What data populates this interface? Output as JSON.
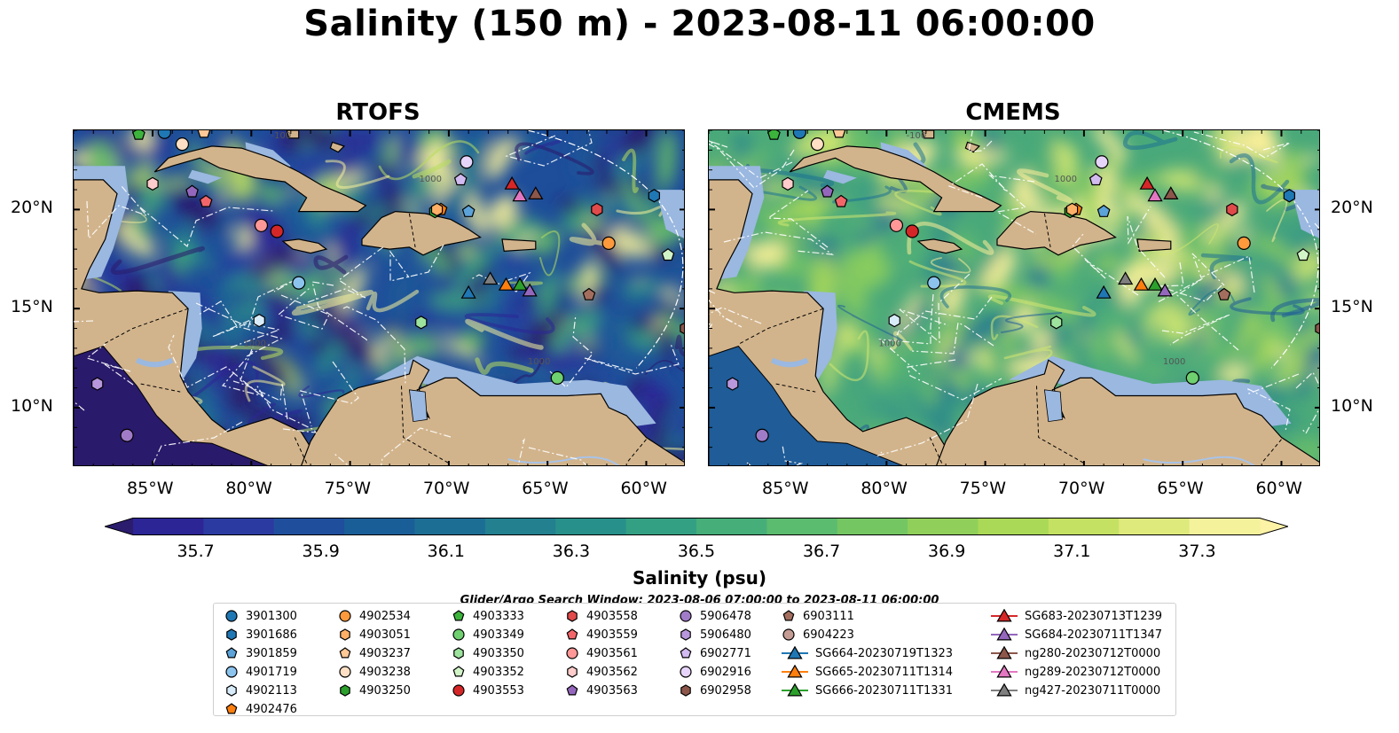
{
  "title": "Salinity (150 m) - 2023-08-11 06:00:00",
  "panels": [
    {
      "title": "RTOFS",
      "palette": "rtofs"
    },
    {
      "title": "CMEMS",
      "palette": "cmems"
    }
  ],
  "map": {
    "lon_range": [
      -89,
      -58
    ],
    "lat_range": [
      7,
      24
    ],
    "lon_ticks": [
      -85,
      -80,
      -75,
      -70,
      -65,
      -60
    ],
    "lon_tick_labels": [
      "85°W",
      "80°W",
      "75°W",
      "70°W",
      "65°W",
      "60°W"
    ],
    "lat_ticks": [
      10,
      15,
      20
    ],
    "lat_tick_labels": [
      "10°N",
      "15°N",
      "20°N"
    ],
    "contour_labels": [
      "-100",
      "1000",
      "1000",
      "1000"
    ],
    "colors": {
      "land": "#d2b48c",
      "shelf": "#9ab8e0",
      "low_salinity": "#2a1a6b",
      "high_salinity": "#fbf09a"
    }
  },
  "colorbar": {
    "label": "Salinity (psu)",
    "ticks": [
      "35.7",
      "35.9",
      "36.1",
      "36.3",
      "36.5",
      "36.7",
      "36.9",
      "37.1",
      "37.3"
    ],
    "tick_values": [
      35.7,
      35.9,
      36.1,
      36.3,
      36.5,
      36.7,
      36.9,
      37.1,
      37.3
    ],
    "min": 35.6,
    "max": 37.4,
    "colors": [
      "#2b1c6e",
      "#2c2596",
      "#2b3aa0",
      "#1f4e9c",
      "#1a5e98",
      "#1d6e94",
      "#22808f",
      "#28908a",
      "#34a083",
      "#46ae79",
      "#5bbb6e",
      "#74c663",
      "#90cf5a",
      "#aad957",
      "#c4e163",
      "#deea7c",
      "#f5f29c",
      "#fdf3a6"
    ]
  },
  "search_window": "Glider/Argo Search Window: 2023-08-06 07:00:00 to 2023-08-11 06:00:00",
  "legend": {
    "columns": [
      [
        {
          "label": "3901300",
          "marker": "circle",
          "color": "#1f77b4"
        },
        {
          "label": "3901686",
          "marker": "hexagon",
          "color": "#1f77b4"
        },
        {
          "label": "3901859",
          "marker": "pentagon",
          "color": "#5ba3d9"
        },
        {
          "label": "4901719",
          "marker": "circle",
          "color": "#8cc4ee"
        },
        {
          "label": "4902113",
          "marker": "hexagon",
          "color": "#d8ecfa"
        },
        {
          "label": "4902476",
          "marker": "pentagon",
          "color": "#ff7f0e"
        }
      ],
      [
        {
          "label": "4902534",
          "marker": "circle",
          "color": "#ff9a3c"
        },
        {
          "label": "4903051",
          "marker": "hexagon",
          "color": "#ffb066"
        },
        {
          "label": "4903237",
          "marker": "pentagon",
          "color": "#ffc896"
        },
        {
          "label": "4903238",
          "marker": "circle",
          "color": "#ffe0c4"
        },
        {
          "label": "4903250",
          "marker": "hexagon",
          "color": "#2ca02c"
        }
      ],
      [
        {
          "label": "4903333",
          "marker": "pentagon",
          "color": "#3cb43c"
        },
        {
          "label": "4903349",
          "marker": "circle",
          "color": "#6fd06f"
        },
        {
          "label": "4903350",
          "marker": "hexagon",
          "color": "#9de39d"
        },
        {
          "label": "4903352",
          "marker": "pentagon",
          "color": "#d2f5c8"
        },
        {
          "label": "4903553",
          "marker": "circle",
          "color": "#d62728"
        }
      ],
      [
        {
          "label": "4903558",
          "marker": "hexagon",
          "color": "#e04a4a"
        },
        {
          "label": "4903559",
          "marker": "pentagon",
          "color": "#f2666a"
        },
        {
          "label": "4903561",
          "marker": "circle",
          "color": "#ff9896"
        },
        {
          "label": "4903562",
          "marker": "hexagon",
          "color": "#ffcccc"
        },
        {
          "label": "4903563",
          "marker": "pentagon",
          "color": "#9467bd"
        }
      ],
      [
        {
          "label": "5906478",
          "marker": "circle",
          "color": "#a07cc8"
        },
        {
          "label": "5906480",
          "marker": "hexagon",
          "color": "#b897dc"
        },
        {
          "label": "6902771",
          "marker": "pentagon",
          "color": "#d2bbf0"
        },
        {
          "label": "6902916",
          "marker": "circle",
          "color": "#e6d4fa"
        },
        {
          "label": "6902958",
          "marker": "hexagon",
          "color": "#8c564b"
        }
      ],
      [
        {
          "label": "6903111",
          "marker": "pentagon",
          "color": "#a46e5f"
        },
        {
          "label": "6904223",
          "marker": "circle",
          "color": "#c49c94"
        },
        {
          "label": "SG664-20230719T1323",
          "marker": "triangle-line",
          "color": "#1f77b4"
        },
        {
          "label": "SG665-20230711T1314",
          "marker": "triangle-line",
          "color": "#ff7f0e"
        },
        {
          "label": "SG666-20230711T1331",
          "marker": "triangle-line",
          "color": "#2ca02c"
        }
      ],
      [
        {
          "label": "SG683-20230713T1239",
          "marker": "triangle-line",
          "color": "#d62728"
        },
        {
          "label": "SG684-20230711T1347",
          "marker": "triangle-line",
          "color": "#9467bd"
        },
        {
          "label": "ng280-20230712T0000",
          "marker": "triangle-line",
          "color": "#8c564b"
        },
        {
          "label": "ng289-20230712T0000",
          "marker": "triangle-line",
          "color": "#e377c2"
        },
        {
          "label": "ng427-20230711T0000",
          "marker": "triangle-line",
          "color": "#7f7f7f"
        }
      ]
    ]
  },
  "stations": [
    {
      "id": "3901300",
      "marker": "circle",
      "color": "#1f77b4",
      "lon": -84.4,
      "lat": 23.9
    },
    {
      "id": "3901686",
      "marker": "hexagon",
      "color": "#1f77b4",
      "lon": -59.6,
      "lat": 20.7
    },
    {
      "id": "4901719",
      "marker": "circle",
      "color": "#8cc4ee",
      "lon": -77.6,
      "lat": 16.3
    },
    {
      "id": "4902113",
      "marker": "hexagon",
      "color": "#d8ecfa",
      "lon": -79.6,
      "lat": 14.4
    },
    {
      "id": "4902534",
      "marker": "circle",
      "color": "#ff9a3c",
      "lon": -61.9,
      "lat": 18.3
    },
    {
      "id": "4903238",
      "marker": "circle",
      "color": "#ffe0c4",
      "lon": -83.5,
      "lat": 23.3
    },
    {
      "id": "4903237",
      "marker": "pentagon",
      "color": "#ffc896",
      "lon": -82.4,
      "lat": 23.9
    },
    {
      "id": "4903333",
      "marker": "pentagon",
      "color": "#3cb43c",
      "lon": -85.7,
      "lat": 23.8
    },
    {
      "id": "4903349",
      "marker": "circle",
      "color": "#6fd06f",
      "lon": -64.5,
      "lat": 11.5
    },
    {
      "id": "4903350",
      "marker": "hexagon",
      "color": "#9de39d",
      "lon": -71.4,
      "lat": 14.3
    },
    {
      "id": "4903352",
      "marker": "pentagon",
      "color": "#d2f5c8",
      "lon": -58.9,
      "lat": 17.7
    },
    {
      "id": "4903553",
      "marker": "circle",
      "color": "#d62728",
      "lon": -78.7,
      "lat": 18.9
    },
    {
      "id": "4903559",
      "marker": "pentagon",
      "color": "#f2666a",
      "lon": -82.3,
      "lat": 20.4
    },
    {
      "id": "4903561",
      "marker": "circle",
      "color": "#ff9896",
      "lon": -79.5,
      "lat": 19.2
    },
    {
      "id": "4903562",
      "marker": "hexagon",
      "color": "#ffcccc",
      "lon": -85.0,
      "lat": 21.3
    },
    {
      "id": "4903563",
      "marker": "pentagon",
      "color": "#9467bd",
      "lon": -83.0,
      "lat": 20.9
    },
    {
      "id": "5906478",
      "marker": "circle",
      "color": "#a07cc8",
      "lon": -86.3,
      "lat": 8.6
    },
    {
      "id": "5906480",
      "marker": "hexagon",
      "color": "#b897dc",
      "lon": -87.8,
      "lat": 11.2
    },
    {
      "id": "6902771",
      "marker": "pentagon",
      "color": "#d2bbf0",
      "lon": -69.4,
      "lat": 21.5
    },
    {
      "id": "6902916",
      "marker": "circle",
      "color": "#e6d4fa",
      "lon": -69.1,
      "lat": 22.4
    },
    {
      "id": "6902958",
      "marker": "hexagon",
      "color": "#8c564b",
      "lon": -58.0,
      "lat": 14.0
    },
    {
      "id": "6903111",
      "marker": "pentagon",
      "color": "#a46e5f",
      "lon": -62.9,
      "lat": 15.7
    },
    {
      "id": "4903250",
      "marker": "hexagon",
      "color": "#2ca02c",
      "lon": -70.7,
      "lat": 19.9
    },
    {
      "id": "4902476",
      "marker": "pentagon",
      "color": "#ff7f0e",
      "lon": -70.4,
      "lat": 20.0
    },
    {
      "id": "4903051",
      "marker": "hexagon",
      "color": "#ffb066",
      "lon": -70.6,
      "lat": 20.0
    },
    {
      "id": "3901859",
      "marker": "pentagon",
      "color": "#5ba3d9",
      "lon": -69.0,
      "lat": 19.9
    },
    {
      "id": "4903558",
      "marker": "hexagon",
      "color": "#e04a4a",
      "lon": -62.5,
      "lat": 20.0
    },
    {
      "id": "SG664-20230719T1323",
      "marker": "triangle",
      "color": "#1f77b4",
      "lon": -69.0,
      "lat": 15.8
    },
    {
      "id": "SG665-20230711T1314",
      "marker": "triangle",
      "color": "#ff7f0e",
      "lon": -67.1,
      "lat": 16.2
    },
    {
      "id": "SG666-20230711T1331",
      "marker": "triangle",
      "color": "#2ca02c",
      "lon": -66.4,
      "lat": 16.2
    },
    {
      "id": "SG683-20230713T1239",
      "marker": "triangle",
      "color": "#d62728",
      "lon": -66.8,
      "lat": 21.3
    },
    {
      "id": "SG684-20230711T1347",
      "marker": "triangle",
      "color": "#9467bd",
      "lon": -65.9,
      "lat": 15.9
    },
    {
      "id": "ng280-20230712T0000",
      "marker": "triangle",
      "color": "#8c564b",
      "lon": -65.6,
      "lat": 20.8
    },
    {
      "id": "ng289-20230712T0000",
      "marker": "triangle",
      "color": "#e377c2",
      "lon": -66.4,
      "lat": 20.7
    },
    {
      "id": "ng427-20230711T0000",
      "marker": "triangle",
      "color": "#7f7f7f",
      "lon": -67.9,
      "lat": 16.5
    }
  ]
}
